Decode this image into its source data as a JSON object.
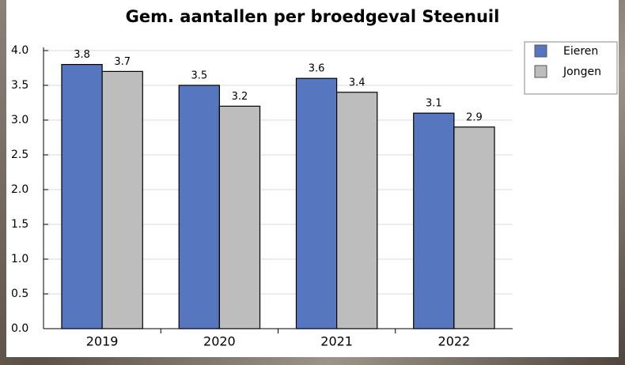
{
  "chart_data": {
    "type": "bar",
    "title": "Gem. aantallen per broedgeval Steenuil",
    "categories": [
      "2019",
      "2020",
      "2021",
      "2022"
    ],
    "series": [
      {
        "name": "Eieren",
        "color": "#5677c0",
        "values": [
          3.8,
          3.5,
          3.6,
          3.1
        ]
      },
      {
        "name": "Jongen",
        "color": "#bdbdbd",
        "values": [
          3.7,
          3.2,
          3.4,
          2.9
        ]
      }
    ],
    "ylim": [
      0,
      4
    ],
    "yticks": [
      {
        "value": 0,
        "label": "0.0"
      },
      {
        "value": 0.5,
        "label": "0.5"
      },
      {
        "value": 1,
        "label": "1.0"
      },
      {
        "value": 1.5,
        "label": "1.5"
      },
      {
        "value": 2,
        "label": "2.0"
      },
      {
        "value": 2.5,
        "label": "2.5"
      },
      {
        "value": 3,
        "label": "3.0"
      },
      {
        "value": 3.5,
        "label": "3.5"
      },
      {
        "value": 4,
        "label": "4.0"
      }
    ],
    "grid": true,
    "legend": "upper right"
  }
}
